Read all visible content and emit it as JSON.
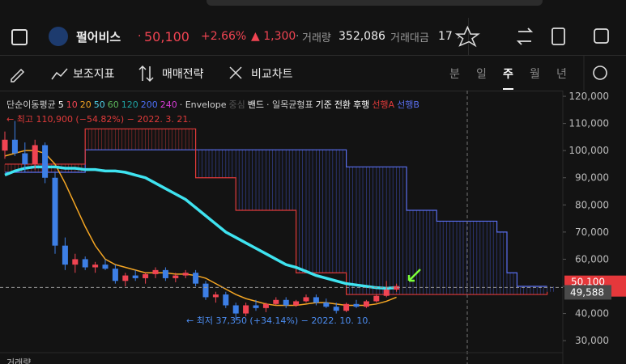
{
  "header": {
    "stock_name": "펄어비스",
    "price": "50,100",
    "change_pct": "+2.66%",
    "change": "▲ 1,300",
    "volume_label": "거래량",
    "volume": "352,086",
    "amount_label": "거래대금",
    "amount": "17"
  },
  "toolbar": {
    "items": [
      "보조지표",
      "매매전략",
      "비교차트"
    ],
    "periods": [
      "분",
      "일",
      "주",
      "월",
      "년"
    ],
    "selected_period_index": 2
  },
  "chart_data": {
    "type": "candlestick",
    "legend": [
      {
        "label": "단순이동평균",
        "color": "#cfcfcf"
      },
      {
        "label": "5",
        "color": "#ffffff"
      },
      {
        "label": "10",
        "color": "#f04452"
      },
      {
        "label": "20",
        "color": "#f5a623"
      },
      {
        "label": "50",
        "color": "#4fd1e8"
      },
      {
        "label": "60",
        "color": "#5cb85c"
      },
      {
        "label": "120",
        "color": "#1fa3a3"
      },
      {
        "label": "200",
        "color": "#4c6ef5"
      },
      {
        "label": "240",
        "color": "#d63cd6"
      },
      {
        "label": "· Envelope",
        "color": "#cfcfcf"
      },
      {
        "label": "중심",
        "color": "#555555"
      },
      {
        "label": "밴드",
        "color": "#ffffff"
      },
      {
        "label": "· 일목균형표",
        "color": "#cfcfcf"
      },
      {
        "label": "기준",
        "color": "#ffffff"
      },
      {
        "label": "전환",
        "color": "#ffffff"
      },
      {
        "label": "후행",
        "color": "#ffffff"
      },
      {
        "label": "선행A",
        "color": "#e03a3a"
      },
      {
        "label": "선행B",
        "color": "#5a6ff0"
      }
    ],
    "annotations": {
      "high": "← 최고 110,900 (−54.82%) − 2022. 3. 21.",
      "low": "← 최저 37,350 (+34.14%) − 2022. 10. 10."
    },
    "open": [
      100000,
      104000,
      99000,
      95000,
      102000,
      90000,
      65000,
      58000,
      60000,
      57000,
      58000,
      56500,
      52000,
      54000,
      53000,
      54500,
      56000,
      53000,
      54000,
      55000,
      51000,
      46000,
      47000,
      43000,
      40000,
      43000,
      42000,
      43500,
      45000,
      43000,
      44500,
      46000,
      44000,
      42500,
      41000,
      43500,
      42500,
      44500,
      46500,
      48800
    ],
    "high": [
      107000,
      110900,
      103000,
      104000,
      103000,
      92000,
      68000,
      62000,
      61000,
      59000,
      60000,
      58000,
      55000,
      56000,
      55000,
      57000,
      57000,
      55000,
      56000,
      56000,
      52000,
      48000,
      48000,
      44000,
      44000,
      45000,
      44000,
      46000,
      46000,
      45000,
      47000,
      47000,
      45500,
      44000,
      44000,
      45000,
      45000,
      47000,
      52000,
      51000
    ],
    "low": [
      97000,
      98000,
      92000,
      93000,
      88000,
      62000,
      56000,
      55000,
      56000,
      55000,
      56000,
      51000,
      50000,
      52000,
      51000,
      53000,
      52000,
      51500,
      53000,
      50000,
      45000,
      44000,
      42000,
      37350,
      39000,
      41000,
      40500,
      43000,
      42000,
      42500,
      44000,
      43000,
      42000,
      40000,
      40500,
      42000,
      42000,
      44000,
      46000,
      48000
    ],
    "close": [
      104000,
      99000,
      95000,
      102000,
      90000,
      65000,
      58000,
      60000,
      57000,
      58000,
      56500,
      52000,
      54000,
      53000,
      54500,
      56000,
      53000,
      54000,
      55000,
      51000,
      46000,
      47000,
      43000,
      40000,
      43000,
      42000,
      43500,
      45000,
      43000,
      44500,
      46000,
      44000,
      42500,
      41000,
      43500,
      42500,
      44500,
      46500,
      48800,
      50100
    ],
    "up_color": "#f04452",
    "down_color": "#3d7fe6",
    "lines": [
      {
        "name": "선행B",
        "color": "#5a6ff0",
        "width": 1.2,
        "values": [
          92000,
          92000,
          92000,
          92000,
          92000,
          92000,
          92000,
          92000,
          100300,
          100300,
          100300,
          100300,
          100300,
          100300,
          100300,
          100300,
          100300,
          100300,
          100300,
          100300,
          100300,
          100300,
          100300,
          100300,
          100300,
          100300,
          100300,
          100300,
          100300,
          100300,
          100300,
          100300,
          100300,
          100300,
          94000,
          94000,
          94000,
          94000,
          94000,
          94000,
          78000,
          78000,
          78000,
          74000,
          74000,
          74000,
          74000,
          74000,
          74000,
          70000,
          55000,
          50000,
          50000,
          50000,
          50000
        ]
      },
      {
        "name": "선행A",
        "color": "#e03a3a",
        "width": 1.2,
        "values": [
          95000,
          95000,
          95000,
          95000,
          95000,
          95000,
          95000,
          95000,
          108000,
          108000,
          108000,
          108000,
          108000,
          108000,
          108000,
          108000,
          108000,
          108000,
          108000,
          90000,
          90000,
          90000,
          90000,
          78000,
          78000,
          78000,
          78000,
          78000,
          78000,
          55000,
          55000,
          55000,
          55000,
          55000,
          47000,
          47000,
          47000,
          47000,
          47000,
          47000,
          47000,
          47000,
          47000,
          47000,
          47000,
          47000,
          47000,
          47000,
          47000,
          47000,
          47000,
          47000,
          47000,
          47000,
          48000
        ]
      },
      {
        "name": "20",
        "color": "#f5a623",
        "width": 1.5,
        "values": [
          98000,
          99000,
          100000,
          100000,
          99000,
          95000,
          88000,
          80000,
          72000,
          65000,
          60000,
          58000,
          57000,
          56000,
          55000,
          55000,
          55000,
          54500,
          54500,
          54000,
          53000,
          51000,
          49000,
          47000,
          45500,
          44500,
          43500,
          43000,
          43000,
          43000,
          43500,
          44000,
          44000,
          43500,
          43000,
          43000,
          43000,
          43500,
          44500,
          46000
        ]
      },
      {
        "name": "120",
        "color": "#3fe3f0",
        "width": 3.5,
        "values": [
          91000,
          92500,
          93500,
          94000,
          94000,
          94000,
          93500,
          93500,
          93000,
          93000,
          92500,
          92500,
          92000,
          91000,
          90000,
          88000,
          86000,
          84000,
          82000,
          79000,
          76000,
          73000,
          70000,
          68000,
          66000,
          64000,
          62000,
          60000,
          58000,
          57000,
          55500,
          54000,
          53000,
          52000,
          51000,
          50500,
          50000,
          49500,
          49300,
          49500
        ]
      }
    ],
    "ylim": [
      21400,
      122100
    ],
    "yticks": [
      {
        "value": 30000,
        "label": "30,000"
      },
      {
        "value": 40000,
        "label": "40,000"
      },
      {
        "value": 50000,
        "label": "50,000"
      },
      {
        "value": 60000,
        "label": "60,000"
      },
      {
        "value": 70000,
        "label": "70,000"
      },
      {
        "value": 80000,
        "label": "80,000"
      },
      {
        "value": 90000,
        "label": "90,000"
      },
      {
        "value": 100000,
        "label": "100,000"
      },
      {
        "value": 110000,
        "label": "110,000"
      },
      {
        "value": 120000,
        "label": "120,000"
      }
    ],
    "price_tags": [
      {
        "value": 50100,
        "label": "50,100",
        "color": "#e5383b"
      },
      {
        "value": 49588,
        "label": "49,588",
        "color": "#4a4a4a"
      }
    ],
    "volume_label": "거래량"
  }
}
